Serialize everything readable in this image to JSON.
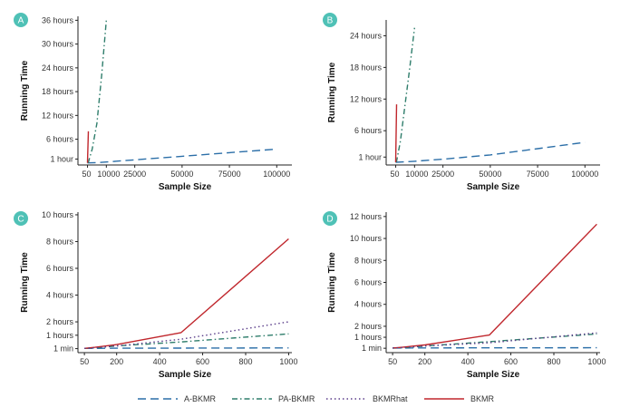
{
  "chart_data": [
    {
      "panel": "A",
      "type": "line",
      "xlabel": "Sample Size",
      "ylabel": "Running Time",
      "xlim": [
        -5000,
        108000
      ],
      "ylim": [
        -0.5,
        37
      ],
      "x_ticks": [
        {
          "v": 50,
          "label": "50"
        },
        {
          "v": 10000,
          "label": "10000"
        },
        {
          "v": 25000,
          "label": "25000"
        },
        {
          "v": 50000,
          "label": "50000"
        },
        {
          "v": 75000,
          "label": "75000"
        },
        {
          "v": 100000,
          "label": "100000"
        }
      ],
      "y_ticks": [
        {
          "v": 1,
          "label": "1 hour"
        },
        {
          "v": 6,
          "label": "6 hours"
        },
        {
          "v": 12,
          "label": "12 hours"
        },
        {
          "v": 18,
          "label": "18 hours"
        },
        {
          "v": 24,
          "label": "24 hours"
        },
        {
          "v": 30,
          "label": "30 hours"
        },
        {
          "v": 36,
          "label": "36 hours"
        }
      ],
      "series": [
        {
          "name": "A-BKMR",
          "x": [
            50,
            5000,
            10000,
            25000,
            50000,
            75000,
            100000
          ],
          "y": [
            0.02,
            0.1,
            0.25,
            0.8,
            1.7,
            2.6,
            3.5
          ]
        },
        {
          "name": "PA-BKMR",
          "x": [
            50,
            500,
            2500,
            5000,
            7500,
            10000
          ],
          "y": [
            0.02,
            0.2,
            3.5,
            10,
            22,
            36
          ]
        },
        {
          "name": "BKMR",
          "x": [
            50,
            500
          ],
          "y": [
            0.02,
            8
          ]
        }
      ]
    },
    {
      "panel": "B",
      "type": "line",
      "xlabel": "Sample Size",
      "ylabel": "Running Time",
      "xlim": [
        -5000,
        108000
      ],
      "ylim": [
        -0.5,
        27
      ],
      "x_ticks": [
        {
          "v": 50,
          "label": "50"
        },
        {
          "v": 10000,
          "label": "10000"
        },
        {
          "v": 25000,
          "label": "25000"
        },
        {
          "v": 50000,
          "label": "50000"
        },
        {
          "v": 75000,
          "label": "75000"
        },
        {
          "v": 100000,
          "label": "100000"
        }
      ],
      "y_ticks": [
        {
          "v": 1,
          "label": "1 hour"
        },
        {
          "v": 6,
          "label": "6 hours"
        },
        {
          "v": 12,
          "label": "12 hours"
        },
        {
          "v": 18,
          "label": "18 hours"
        },
        {
          "v": 24,
          "label": "24 hours"
        }
      ],
      "series": [
        {
          "name": "A-BKMR",
          "x": [
            50,
            5000,
            10000,
            25000,
            50000,
            75000,
            100000
          ],
          "y": [
            0.02,
            0.1,
            0.2,
            0.6,
            1.4,
            2.6,
            3.8
          ]
        },
        {
          "name": "PA-BKMR",
          "x": [
            50,
            500,
            2500,
            5000,
            7500,
            10000
          ],
          "y": [
            0.02,
            0.2,
            4,
            11,
            18,
            25.5
          ]
        },
        {
          "name": "BKMR",
          "x": [
            50,
            500
          ],
          "y": [
            0.02,
            11
          ]
        }
      ]
    },
    {
      "panel": "C",
      "type": "line",
      "xlabel": "Sample Size",
      "ylabel": "Running Time",
      "xlim": [
        20,
        1015
      ],
      "ylim": [
        -0.3,
        10.2
      ],
      "x_ticks": [
        {
          "v": 50,
          "label": "50"
        },
        {
          "v": 200,
          "label": "200"
        },
        {
          "v": 400,
          "label": "400"
        },
        {
          "v": 600,
          "label": "600"
        },
        {
          "v": 800,
          "label": "800"
        },
        {
          "v": 1000,
          "label": "1000"
        }
      ],
      "y_ticks": [
        {
          "v": 0,
          "label": "1 min"
        },
        {
          "v": 1,
          "label": "1 hours"
        },
        {
          "v": 2,
          "label": "2 hours"
        },
        {
          "v": 4,
          "label": "4 hours"
        },
        {
          "v": 6,
          "label": "6 hours"
        },
        {
          "v": 8,
          "label": "8 hours"
        },
        {
          "v": 10,
          "label": "10 hours"
        }
      ],
      "series": [
        {
          "name": "A-BKMR",
          "x": [
            50,
            100,
            200,
            500,
            1000
          ],
          "y": [
            0.02,
            0.02,
            0.03,
            0.04,
            0.05
          ]
        },
        {
          "name": "PA-BKMR",
          "x": [
            50,
            100,
            200,
            500,
            1000
          ],
          "y": [
            0.02,
            0.05,
            0.2,
            0.5,
            1.1
          ]
        },
        {
          "name": "BKMR",
          "x": [
            50,
            100,
            200,
            500,
            1000
          ],
          "y": [
            0.02,
            0.1,
            0.3,
            1.2,
            8.2
          ]
        },
        {
          "name": "BKMRhat",
          "x": [
            50,
            100,
            200,
            500,
            1000
          ],
          "y": [
            0.02,
            0.06,
            0.2,
            0.7,
            2.0
          ]
        }
      ]
    },
    {
      "panel": "D",
      "type": "line",
      "xlabel": "Sample Size",
      "ylabel": "Running Time",
      "xlim": [
        20,
        1015
      ],
      "ylim": [
        -0.4,
        12.4
      ],
      "x_ticks": [
        {
          "v": 50,
          "label": "50"
        },
        {
          "v": 200,
          "label": "200"
        },
        {
          "v": 400,
          "label": "400"
        },
        {
          "v": 600,
          "label": "600"
        },
        {
          "v": 800,
          "label": "800"
        },
        {
          "v": 1000,
          "label": "1000"
        }
      ],
      "y_ticks": [
        {
          "v": 0,
          "label": "1 min"
        },
        {
          "v": 1,
          "label": "1 hours"
        },
        {
          "v": 2,
          "label": "2 hours"
        },
        {
          "v": 4,
          "label": "4 hours"
        },
        {
          "v": 6,
          "label": "6 hours"
        },
        {
          "v": 8,
          "label": "8 hours"
        },
        {
          "v": 10,
          "label": "10 hours"
        },
        {
          "v": 12,
          "label": "12 hours"
        }
      ],
      "series": [
        {
          "name": "A-BKMR",
          "x": [
            50,
            100,
            200,
            500,
            1000
          ],
          "y": [
            0.02,
            0.02,
            0.03,
            0.04,
            0.05
          ]
        },
        {
          "name": "PA-BKMR",
          "x": [
            50,
            100,
            200,
            500,
            1000
          ],
          "y": [
            0.02,
            0.05,
            0.2,
            0.6,
            1.3
          ]
        },
        {
          "name": "BKMR",
          "x": [
            50,
            100,
            200,
            500,
            1000
          ],
          "y": [
            0.02,
            0.1,
            0.3,
            1.2,
            11.3
          ]
        },
        {
          "name": "BKMRhat",
          "x": [
            50,
            100,
            200,
            500,
            1000
          ],
          "y": [
            0.02,
            0.06,
            0.2,
            0.5,
            1.4
          ]
        }
      ]
    }
  ],
  "legend": {
    "placement": "bottom",
    "entries": [
      {
        "name": "A-BKMR",
        "color": "#2c6fa8",
        "style": "long-dash"
      },
      {
        "name": "PA-BKMR",
        "color": "#2e7d6b",
        "style": "dot-dash"
      },
      {
        "name": "BKMRhat",
        "color": "#5a3d8a",
        "style": "dotted"
      },
      {
        "name": "BKMR",
        "color": "#c0272d",
        "style": "solid"
      }
    ]
  },
  "badge_color": "#4fc1b6"
}
